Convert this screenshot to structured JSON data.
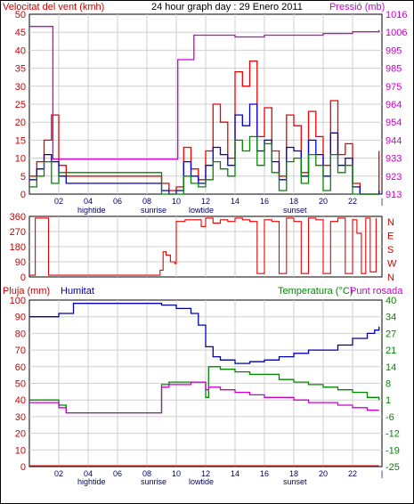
{
  "chart_data": [
    {
      "type": "line",
      "title": "24 hour graph day : 29 Enero 2011",
      "y_left_label": "Velocitat del vent (kmh)",
      "y_right_label": "Pressió (mb)",
      "x_ticks": [
        "02",
        "04",
        "06",
        "08",
        "10",
        "12",
        "14",
        "16",
        "18",
        "20",
        "22"
      ],
      "x_annotations": [
        "hightide",
        "sunrise",
        "lowtide",
        "sunset"
      ],
      "y_left_range": [
        0,
        50
      ],
      "y_left_ticks": [
        "0",
        "5",
        "10",
        "15",
        "20",
        "25",
        "30",
        "35",
        "40",
        "45",
        "50"
      ],
      "y_right_ticks": [
        "913",
        "923",
        "933",
        "944",
        "954",
        "964",
        "975",
        "985",
        "995",
        "1006",
        "1016"
      ],
      "series": [
        {
          "color": "#ee0000",
          "x": [
            0,
            0.5,
            1,
            1.5,
            2,
            2.5,
            3,
            3.5,
            4,
            8.5,
            9,
            9.5,
            10,
            10.5,
            11,
            11.5,
            12,
            12.5,
            13,
            13.5,
            14,
            14.5,
            15,
            15.5,
            16,
            16.5,
            17,
            17.5,
            18,
            18.5,
            19,
            19.5,
            20,
            20.5,
            21,
            21.5,
            22,
            22.5,
            23,
            23.8
          ],
          "y": [
            5,
            9,
            15,
            22,
            8,
            5,
            5,
            5,
            5,
            5,
            3,
            1,
            2,
            13,
            7,
            4,
            12,
            25,
            20,
            10,
            34,
            30,
            37,
            16,
            24,
            12,
            5,
            22,
            19,
            6,
            23,
            16,
            8,
            26,
            11,
            14,
            3,
            0,
            0,
            12
          ]
        },
        {
          "color": "#0000cc",
          "x": [
            0,
            0.5,
            1,
            1.5,
            2,
            2.5,
            3,
            3.5,
            4,
            8.5,
            9,
            9.5,
            10,
            10.5,
            11,
            11.5,
            12,
            12.5,
            13,
            13.5,
            14,
            14.5,
            15,
            15.5,
            16,
            16.5,
            17,
            17.5,
            18,
            18.5,
            19,
            19.5,
            20,
            20.5,
            21,
            21.5,
            22,
            22.5,
            23,
            23.8
          ],
          "y": [
            4,
            7,
            11,
            9,
            5,
            3,
            3,
            3,
            3,
            3,
            1,
            0,
            1,
            9,
            5,
            3,
            8,
            13,
            11,
            8,
            22,
            19,
            25,
            12,
            15,
            9,
            4,
            13,
            12,
            5,
            15,
            11,
            5,
            17,
            8,
            10,
            2,
            0,
            0,
            1
          ]
        },
        {
          "color": "#008800",
          "x": [
            0,
            0.5,
            1,
            1.5,
            2,
            2.5,
            3,
            3.5,
            4,
            8.5,
            9,
            9.5,
            10,
            10.5,
            11,
            11.5,
            12,
            12.5,
            13,
            13.5,
            14,
            14.5,
            15,
            15.5,
            16,
            16.5,
            17,
            17.5,
            18,
            18.5,
            19,
            19.5,
            20,
            20.5,
            21,
            21.5,
            22,
            22.5,
            23,
            23.8
          ],
          "y": [
            2,
            5,
            9,
            3,
            6,
            6,
            6,
            6,
            6,
            6,
            0,
            0,
            0,
            5,
            3,
            2,
            4,
            9,
            7,
            5,
            15,
            12,
            16,
            8,
            14,
            6,
            1,
            9,
            10,
            3,
            11,
            8,
            1,
            11,
            6,
            8,
            0,
            0,
            0,
            0
          ]
        },
        {
          "color": "#cc00cc",
          "x": [
            0,
            1.5,
            1.6,
            10,
            10.1,
            10.5,
            10.6,
            11,
            11.2,
            12,
            14,
            16,
            18,
            20,
            22,
            23.8
          ],
          "y": [
            1009,
            1009,
            933,
            933,
            990,
            990,
            990,
            990,
            1004,
            1004,
            1003,
            1004,
            1004,
            1005,
            1006,
            1007
          ]
        }
      ]
    },
    {
      "type": "line",
      "y_right_label": "N W S E N",
      "y_right_letters": [
        "N",
        "W",
        "S",
        "E",
        "N"
      ],
      "y_left_range": [
        0,
        360
      ],
      "y_left_ticks": [
        "0",
        "90",
        "180",
        "270",
        "360"
      ],
      "x_ticks": [
        "02",
        "04",
        "06",
        "08",
        "10",
        "12",
        "14",
        "16",
        "18",
        "20",
        "22"
      ],
      "series": [
        {
          "color": "#ee0000",
          "x": [
            0,
            0.3,
            0.4,
            1.2,
            1.3,
            8.8,
            8.9,
            9.1,
            9.3,
            9.6,
            9.9,
            10.0,
            10.5,
            10.6,
            11.6,
            11.7,
            12,
            12.5,
            13,
            13.5,
            14,
            14.5,
            15,
            15.5,
            16,
            16.5,
            17,
            17.5,
            18,
            18.5,
            19,
            19.5,
            20,
            20.5,
            21,
            21.5,
            22,
            22.3,
            22.6,
            22.9,
            23.2,
            23.6
          ],
          "y": [
            10,
            10,
            350,
            350,
            10,
            10,
            40,
            150,
            130,
            90,
            80,
            330,
            330,
            340,
            340,
            300,
            350,
            320,
            340,
            330,
            350,
            340,
            330,
            20,
            340,
            330,
            20,
            350,
            330,
            20,
            350,
            340,
            20,
            330,
            350,
            20,
            340,
            260,
            20,
            350,
            30,
            350
          ]
        }
      ]
    },
    {
      "type": "line",
      "y_left_label": "Pluja (mm)",
      "y_left_label2": "Humitat",
      "y_right_label": "Temperatura (°C)",
      "y_right_label2": "Punt rosada",
      "y_left_range": [
        0,
        100
      ],
      "y_left_ticks": [
        "0",
        "10",
        "20",
        "30",
        "40",
        "50",
        "60",
        "70",
        "80",
        "90",
        "100"
      ],
      "y_right_ticks": [
        "-25",
        "-19",
        "-12",
        "-6",
        "1",
        "8",
        "14",
        "21",
        "27",
        "34",
        "40"
      ],
      "y_right_range": [
        -25,
        40
      ],
      "x_ticks": [
        "02",
        "04",
        "06",
        "08",
        "10",
        "12",
        "14",
        "16",
        "18",
        "20",
        "22"
      ],
      "x_annotations": [
        "hightide",
        "sunrise",
        "lowtide",
        "sunset"
      ],
      "series": [
        {
          "color": "#0000aa",
          "x": [
            0,
            1,
            2,
            3,
            4,
            6,
            8,
            9,
            10,
            11,
            11.5,
            12,
            12.5,
            13,
            14,
            15,
            16,
            17,
            18,
            19,
            20,
            21,
            22,
            23,
            23.5,
            23.8
          ],
          "y": [
            90,
            90,
            92,
            98,
            98,
            98,
            98,
            97,
            95,
            92,
            85,
            72,
            66,
            64,
            62,
            63,
            64,
            66,
            68,
            70,
            70,
            73,
            77,
            80,
            82,
            84
          ]
        },
        {
          "color": "#008800",
          "x": [
            0,
            1.5,
            2,
            2.5,
            3,
            4,
            6,
            8,
            9,
            9.5,
            10,
            11,
            11.5,
            12,
            12.2,
            13,
            14,
            15,
            16,
            17,
            18,
            19,
            20,
            21,
            22,
            23,
            23.8
          ],
          "y": [
            1,
            1,
            -1,
            -4,
            -4,
            -4,
            -4,
            -4,
            7,
            8,
            8,
            8,
            8,
            2,
            14,
            13,
            12,
            11,
            11,
            9,
            8,
            7,
            6,
            5,
            4,
            2,
            1
          ]
        },
        {
          "color": "#cc00cc",
          "x": [
            0,
            1.5,
            2,
            2.5,
            3,
            4,
            6,
            8,
            9,
            9.5,
            10,
            11,
            11.5,
            12,
            12.2,
            13,
            14,
            15,
            16,
            17,
            18,
            19,
            20,
            21,
            22,
            23,
            23.8
          ],
          "y": [
            0,
            0,
            -2,
            -4,
            -4,
            -4,
            -4,
            -4,
            6,
            7,
            7,
            8,
            8,
            5,
            6,
            5,
            4,
            3,
            2,
            2,
            1,
            0,
            0,
            -1,
            -2,
            -3,
            -3
          ]
        },
        {
          "color": "#ee0000",
          "x": [
            0,
            23.8
          ],
          "y": [
            0.5,
            0.5
          ]
        }
      ]
    }
  ]
}
